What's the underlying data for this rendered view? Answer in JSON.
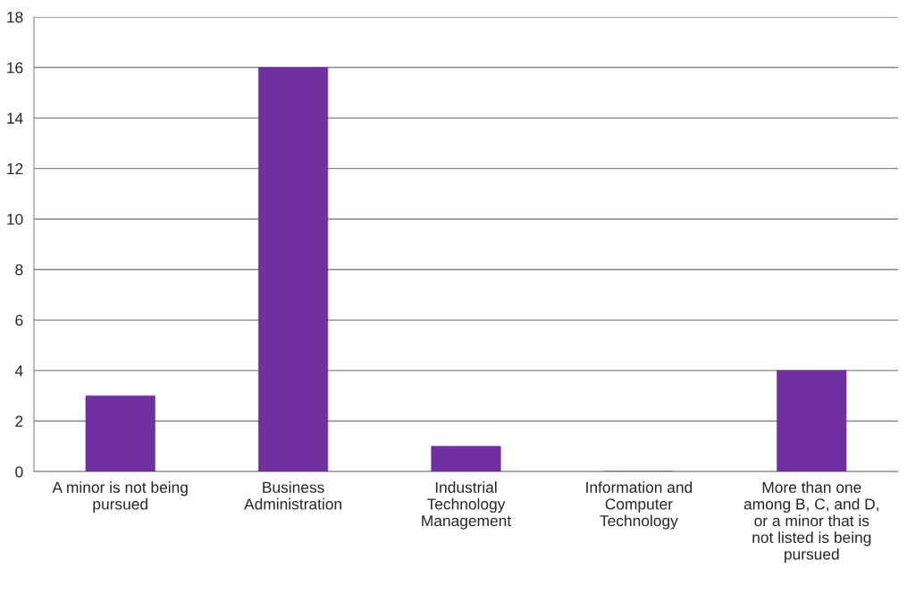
{
  "chart_data": {
    "type": "bar",
    "categories": [
      "A minor is not being\npursued",
      "Business\nAdministration",
      "Industrial\nTechnology\nManagement",
      "Information and\nComputer\nTechnology",
      "More than one\namong B, C, and D,\nor a minor that is\nnot listed is being\npursued"
    ],
    "values": [
      3,
      16,
      1,
      0,
      4
    ],
    "color": "#7030a0",
    "ylim": [
      0,
      18
    ],
    "yticks": [
      0,
      2,
      4,
      6,
      8,
      10,
      12,
      14,
      16,
      18
    ],
    "grid": "y"
  }
}
